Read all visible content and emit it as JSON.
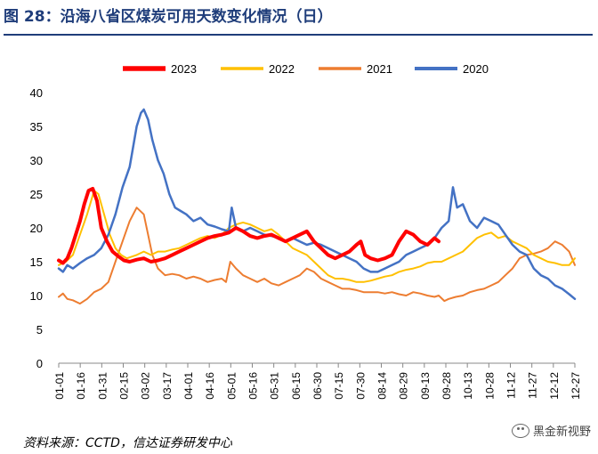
{
  "title": "图 28：沿海八省区煤炭可用天数变化情况（日）",
  "source": "资料来源：CCTD，信达证券研发中心",
  "watermark": "黑金新视野",
  "watermark_icon": "wechat-icon",
  "chart_data": {
    "type": "line",
    "title": "",
    "xlabel": "",
    "ylabel": "",
    "ylim": [
      0,
      40
    ],
    "yticks": [
      0,
      5,
      10,
      15,
      20,
      25,
      30,
      35,
      40
    ],
    "xticks": [
      "01-01",
      "01-16",
      "01-31",
      "02-15",
      "03-02",
      "03-17",
      "04-01",
      "04-16",
      "05-01",
      "05-16",
      "05-31",
      "06-15",
      "06-30",
      "07-15",
      "07-30",
      "08-14",
      "08-29",
      "09-13",
      "09-28",
      "10-13",
      "10-28",
      "11-12",
      "11-27",
      "12-12",
      "12-27"
    ],
    "x_unit": "day-of-year, 0 = 01-01",
    "grid": false,
    "legend_position": "top",
    "series": [
      {
        "name": "2023",
        "color": "#ff0000",
        "width": 4,
        "points": [
          [
            0,
            15.2
          ],
          [
            3,
            14.8
          ],
          [
            6,
            15.5
          ],
          [
            9,
            17
          ],
          [
            12,
            19
          ],
          [
            15,
            21
          ],
          [
            18,
            23.5
          ],
          [
            21,
            25.5
          ],
          [
            24,
            25.8
          ],
          [
            27,
            24
          ],
          [
            30,
            20
          ],
          [
            34,
            18
          ],
          [
            38,
            16.5
          ],
          [
            42,
            15.8
          ],
          [
            46,
            15.2
          ],
          [
            50,
            15
          ],
          [
            55,
            15.3
          ],
          [
            60,
            15.5
          ],
          [
            65,
            15
          ],
          [
            70,
            15.2
          ],
          [
            75,
            15.5
          ],
          [
            80,
            16
          ],
          [
            85,
            16.5
          ],
          [
            90,
            17
          ],
          [
            95,
            17.5
          ],
          [
            100,
            18
          ],
          [
            105,
            18.5
          ],
          [
            110,
            18.8
          ],
          [
            115,
            19
          ],
          [
            120,
            19.3
          ],
          [
            125,
            20
          ],
          [
            130,
            19.5
          ],
          [
            135,
            18.8
          ],
          [
            140,
            18.5
          ],
          [
            145,
            18.8
          ],
          [
            150,
            19
          ],
          [
            155,
            18.5
          ],
          [
            160,
            18
          ],
          [
            165,
            18.5
          ],
          [
            170,
            19
          ],
          [
            175,
            19.5
          ],
          [
            180,
            18
          ],
          [
            185,
            17
          ],
          [
            190,
            16
          ],
          [
            195,
            15.5
          ],
          [
            200,
            16
          ],
          [
            205,
            16.5
          ],
          [
            210,
            17.5
          ],
          [
            213,
            18
          ],
          [
            216,
            16
          ],
          [
            220,
            15.5
          ],
          [
            225,
            15.2
          ],
          [
            230,
            15.5
          ],
          [
            235,
            16
          ],
          [
            240,
            18
          ],
          [
            245,
            19.5
          ],
          [
            250,
            19
          ],
          [
            255,
            18
          ],
          [
            260,
            17.5
          ],
          [
            265,
            18.5
          ],
          [
            268,
            18
          ]
        ]
      },
      {
        "name": "2022",
        "color": "#ffc000",
        "width": 2,
        "points": [
          [
            0,
            14.5
          ],
          [
            5,
            15
          ],
          [
            10,
            16
          ],
          [
            15,
            19
          ],
          [
            20,
            22
          ],
          [
            25,
            25.5
          ],
          [
            28,
            25
          ],
          [
            32,
            22
          ],
          [
            36,
            19
          ],
          [
            40,
            17
          ],
          [
            44,
            16
          ],
          [
            48,
            15.5
          ],
          [
            55,
            16
          ],
          [
            60,
            16.5
          ],
          [
            65,
            16
          ],
          [
            70,
            16.5
          ],
          [
            75,
            16.5
          ],
          [
            80,
            16.8
          ],
          [
            85,
            17
          ],
          [
            90,
            17.5
          ],
          [
            95,
            18
          ],
          [
            100,
            18.5
          ],
          [
            105,
            18.8
          ],
          [
            110,
            18.5
          ],
          [
            115,
            19
          ],
          [
            120,
            20
          ],
          [
            125,
            20.5
          ],
          [
            130,
            20.8
          ],
          [
            135,
            20.5
          ],
          [
            140,
            20
          ],
          [
            145,
            19.5
          ],
          [
            150,
            19.8
          ],
          [
            155,
            19
          ],
          [
            160,
            18
          ],
          [
            165,
            17
          ],
          [
            170,
            16.5
          ],
          [
            175,
            16
          ],
          [
            180,
            15
          ],
          [
            185,
            14
          ],
          [
            190,
            13
          ],
          [
            195,
            12.5
          ],
          [
            200,
            12.5
          ],
          [
            205,
            12.3
          ],
          [
            210,
            12
          ],
          [
            215,
            12
          ],
          [
            220,
            12.2
          ],
          [
            225,
            12.5
          ],
          [
            230,
            12.8
          ],
          [
            235,
            13
          ],
          [
            240,
            13.5
          ],
          [
            245,
            13.8
          ],
          [
            250,
            14
          ],
          [
            255,
            14.3
          ],
          [
            260,
            14.8
          ],
          [
            265,
            15
          ],
          [
            270,
            15
          ],
          [
            275,
            15.5
          ],
          [
            280,
            16
          ],
          [
            285,
            16.5
          ],
          [
            290,
            17.5
          ],
          [
            295,
            18.5
          ],
          [
            300,
            19
          ],
          [
            305,
            19.3
          ],
          [
            310,
            18.5
          ],
          [
            315,
            18.8
          ],
          [
            320,
            18
          ],
          [
            325,
            17.5
          ],
          [
            330,
            17
          ],
          [
            335,
            16
          ],
          [
            340,
            15.5
          ],
          [
            345,
            15
          ],
          [
            350,
            14.8
          ],
          [
            355,
            14.5
          ],
          [
            360,
            14.5
          ],
          [
            364,
            15.5
          ]
        ]
      },
      {
        "name": "2021",
        "color": "#ed7d31",
        "width": 2,
        "points": [
          [
            0,
            9.8
          ],
          [
            3,
            10.3
          ],
          [
            6,
            9.5
          ],
          [
            10,
            9.3
          ],
          [
            15,
            8.8
          ],
          [
            20,
            9.5
          ],
          [
            25,
            10.5
          ],
          [
            30,
            11
          ],
          [
            35,
            12
          ],
          [
            40,
            15
          ],
          [
            45,
            18
          ],
          [
            50,
            21
          ],
          [
            55,
            23
          ],
          [
            60,
            22
          ],
          [
            63,
            19
          ],
          [
            66,
            16
          ],
          [
            70,
            14
          ],
          [
            75,
            13
          ],
          [
            80,
            13.2
          ],
          [
            85,
            13
          ],
          [
            90,
            12.5
          ],
          [
            95,
            12.8
          ],
          [
            100,
            12.5
          ],
          [
            105,
            12
          ],
          [
            110,
            12.3
          ],
          [
            115,
            12.5
          ],
          [
            118,
            12
          ],
          [
            121,
            15
          ],
          [
            125,
            14
          ],
          [
            130,
            13
          ],
          [
            135,
            12.5
          ],
          [
            140,
            12
          ],
          [
            145,
            12.5
          ],
          [
            150,
            11.8
          ],
          [
            155,
            11.5
          ],
          [
            160,
            12
          ],
          [
            165,
            12.5
          ],
          [
            170,
            13
          ],
          [
            175,
            14
          ],
          [
            180,
            13.5
          ],
          [
            185,
            12.5
          ],
          [
            190,
            12
          ],
          [
            195,
            11.5
          ],
          [
            200,
            11
          ],
          [
            205,
            11
          ],
          [
            210,
            10.8
          ],
          [
            215,
            10.5
          ],
          [
            220,
            10.5
          ],
          [
            225,
            10.5
          ],
          [
            230,
            10.3
          ],
          [
            235,
            10.5
          ],
          [
            240,
            10.2
          ],
          [
            245,
            10
          ],
          [
            250,
            10.5
          ],
          [
            255,
            10.3
          ],
          [
            260,
            10
          ],
          [
            265,
            9.8
          ],
          [
            268,
            10
          ],
          [
            272,
            9.2
          ],
          [
            275,
            9.5
          ],
          [
            280,
            9.8
          ],
          [
            285,
            10
          ],
          [
            290,
            10.5
          ],
          [
            295,
            10.8
          ],
          [
            300,
            11
          ],
          [
            305,
            11.5
          ],
          [
            310,
            12
          ],
          [
            315,
            13
          ],
          [
            320,
            14
          ],
          [
            325,
            15.5
          ],
          [
            330,
            16
          ],
          [
            335,
            16.2
          ],
          [
            340,
            16.5
          ],
          [
            345,
            17
          ],
          [
            350,
            18
          ],
          [
            355,
            17.5
          ],
          [
            360,
            16.5
          ],
          [
            364,
            14.5
          ]
        ]
      },
      {
        "name": "2020",
        "color": "#4472c4",
        "width": 2.5,
        "points": [
          [
            0,
            14
          ],
          [
            3,
            13.5
          ],
          [
            6,
            14.5
          ],
          [
            10,
            14
          ],
          [
            15,
            14.8
          ],
          [
            20,
            15.5
          ],
          [
            25,
            16
          ],
          [
            30,
            17
          ],
          [
            35,
            19
          ],
          [
            40,
            22
          ],
          [
            45,
            26
          ],
          [
            50,
            29
          ],
          [
            55,
            35
          ],
          [
            58,
            37
          ],
          [
            60,
            37.5
          ],
          [
            63,
            36
          ],
          [
            66,
            33
          ],
          [
            70,
            30
          ],
          [
            74,
            28
          ],
          [
            78,
            25
          ],
          [
            82,
            23
          ],
          [
            86,
            22.5
          ],
          [
            90,
            22
          ],
          [
            95,
            21
          ],
          [
            100,
            21.5
          ],
          [
            105,
            20.5
          ],
          [
            110,
            20.2
          ],
          [
            115,
            19.8
          ],
          [
            120,
            19.5
          ],
          [
            122,
            23
          ],
          [
            125,
            20
          ],
          [
            130,
            19.5
          ],
          [
            135,
            20
          ],
          [
            140,
            19.5
          ],
          [
            145,
            19
          ],
          [
            150,
            18.8
          ],
          [
            155,
            18.5
          ],
          [
            160,
            18
          ],
          [
            165,
            18.5
          ],
          [
            170,
            18
          ],
          [
            175,
            17.5
          ],
          [
            180,
            17.8
          ],
          [
            185,
            17.5
          ],
          [
            190,
            17
          ],
          [
            195,
            16.5
          ],
          [
            200,
            16
          ],
          [
            205,
            15.5
          ],
          [
            210,
            15
          ],
          [
            215,
            14
          ],
          [
            220,
            13.5
          ],
          [
            225,
            13.5
          ],
          [
            230,
            14
          ],
          [
            235,
            14.5
          ],
          [
            240,
            15
          ],
          [
            245,
            16
          ],
          [
            250,
            16.5
          ],
          [
            255,
            17
          ],
          [
            260,
            17.5
          ],
          [
            265,
            18.5
          ],
          [
            270,
            20
          ],
          [
            275,
            21
          ],
          [
            278,
            26
          ],
          [
            281,
            23
          ],
          [
            285,
            23.5
          ],
          [
            290,
            21
          ],
          [
            295,
            20
          ],
          [
            300,
            21.5
          ],
          [
            305,
            21
          ],
          [
            310,
            20.5
          ],
          [
            315,
            19
          ],
          [
            320,
            17.5
          ],
          [
            325,
            16.5
          ],
          [
            330,
            16
          ],
          [
            335,
            14
          ],
          [
            340,
            13
          ],
          [
            345,
            12.5
          ],
          [
            350,
            11.5
          ],
          [
            355,
            11
          ],
          [
            360,
            10.2
          ],
          [
            364,
            9.5
          ]
        ]
      }
    ]
  }
}
